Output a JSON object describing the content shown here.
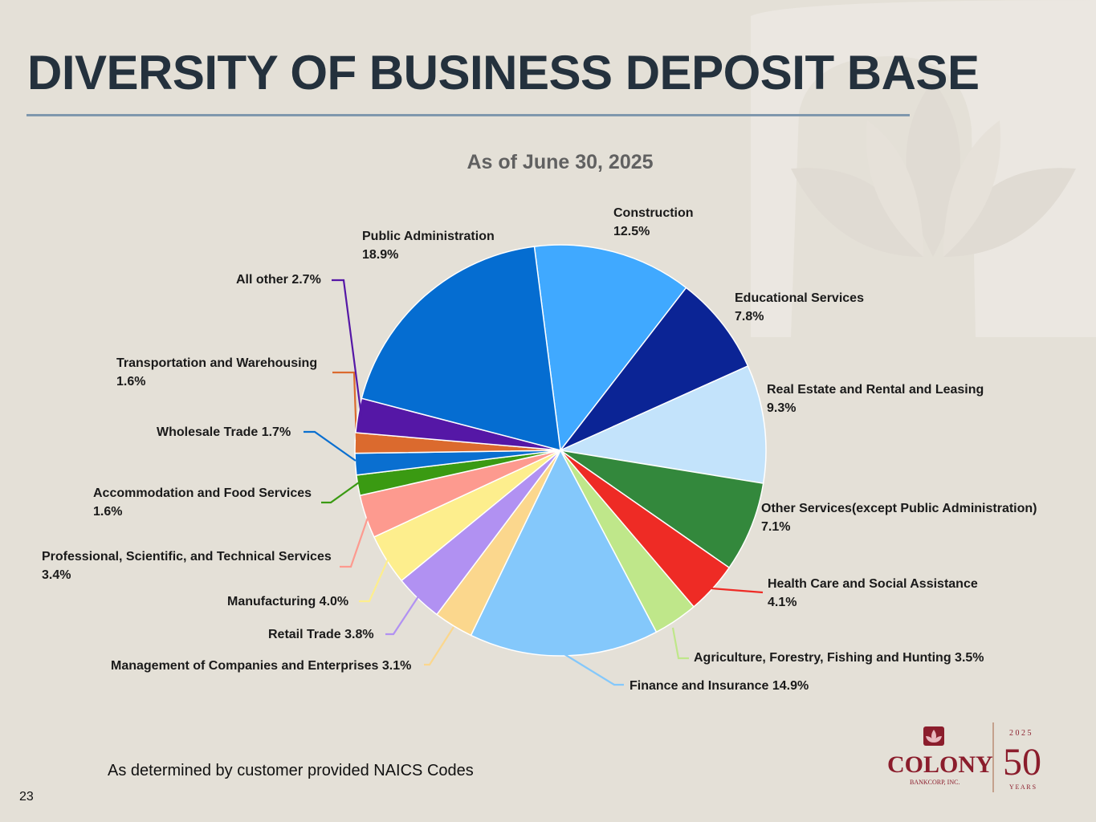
{
  "slide": {
    "title": "DIVERSITY OF BUSINESS DEPOSIT BASE",
    "footnote": "As determined by customer provided NAICS Codes",
    "page_number": "23"
  },
  "logo": {
    "name": "COLONY",
    "sub": "BANKCORP, INC.",
    "year_digits": "2 0 2 5",
    "anniversary": "50",
    "years_word": "Y E A R S",
    "brand_color": "#8b1d2c"
  },
  "chart_data": {
    "type": "pie",
    "title": "As of June 30, 2025",
    "start_angle_deg": -7.3,
    "direction": "clockwise",
    "slices": [
      {
        "label": "Construction",
        "value": 12.5,
        "display": "Construction\n12.5%",
        "color": "#40a9ff"
      },
      {
        "label": "Educational Services",
        "value": 7.8,
        "display": "Educational Services\n7.8%",
        "color": "#0b2495"
      },
      {
        "label": "Real Estate and Rental and Leasing",
        "value": 9.3,
        "display": "Real Estate and Rental and Leasing\n9.3%",
        "color": "#c3e3fb"
      },
      {
        "label": "Other Services(except Public Administration)",
        "value": 7.1,
        "display": "Other Services(except Public Administration)\n7.1%",
        "color": "#33883c"
      },
      {
        "label": "Health Care and Social Assistance",
        "value": 4.1,
        "display": "Health Care and Social Assistance\n4.1%",
        "color": "#ee2b25"
      },
      {
        "label": "Agriculture, Forestry, Fishing and Hunting",
        "value": 3.5,
        "display": "Agriculture, Forestry, Fishing and Hunting 3.5%",
        "color": "#bfe78a"
      },
      {
        "label": "Finance and Insurance",
        "value": 14.9,
        "display": "Finance and Insurance 14.9%",
        "color": "#84c8fb"
      },
      {
        "label": "Management of Companies and Enterprises",
        "value": 3.1,
        "display": "Management of Companies and Enterprises 3.1%",
        "color": "#fbd78d"
      },
      {
        "label": "Retail Trade",
        "value": 3.8,
        "display": "Retail Trade 3.8%",
        "color": "#b191f2"
      },
      {
        "label": "Manufacturing",
        "value": 4.0,
        "display": "Manufacturing 4.0%",
        "color": "#fdee8d"
      },
      {
        "label": "Professional, Scientific, and Technical Services",
        "value": 3.4,
        "display": "Professional, Scientific, and Technical Services\n3.4%",
        "color": "#fd9a8f"
      },
      {
        "label": "Accommodation and Food Services",
        "value": 1.6,
        "display": "Accommodation and Food Services\n1.6%",
        "color": "#3a9a12"
      },
      {
        "label": "Wholesale Trade",
        "value": 1.7,
        "display": "Wholesale Trade 1.7%",
        "color": "#0a6fd0"
      },
      {
        "label": "Transportation and Warehousing",
        "value": 1.6,
        "display": "Transportation and Warehousing\n1.6%",
        "color": "#db6a2e"
      },
      {
        "label": "All other",
        "value": 2.7,
        "display": "All other 2.7%",
        "color": "#5517a6"
      },
      {
        "label": "Public Administration",
        "value": 18.9,
        "display": "Public Administration\n18.9%",
        "color": "#056dd1"
      }
    ]
  }
}
